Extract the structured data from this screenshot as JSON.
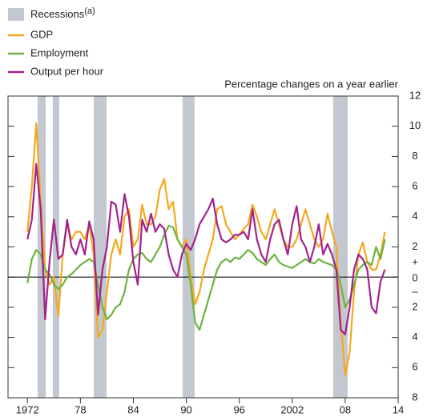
{
  "chart_data": {
    "type": "line",
    "subtitle": "Percentage changes on a year earlier",
    "recession_label": "Recessions",
    "recession_note": "(a)",
    "recession_color": "#c3c8d0",
    "recessions": [
      [
        1973.16,
        1974.07
      ],
      [
        1974.88,
        1975.6
      ],
      [
        1979.51,
        1980.96
      ],
      [
        1989.58,
        1990.94
      ],
      [
        2006.64,
        2008.28
      ]
    ],
    "sign_labels": [
      "+",
      "–"
    ],
    "xlim": [
      1969.8,
      2014
    ],
    "xticks": [
      {
        "value": 1972,
        "label": "1972"
      },
      {
        "value": 1978,
        "label": "78"
      },
      {
        "value": 1984,
        "label": "84"
      },
      {
        "value": 1990,
        "label": "90"
      },
      {
        "value": 1996,
        "label": "96"
      },
      {
        "value": 2002,
        "label": "2002"
      },
      {
        "value": 2008,
        "label": "08"
      },
      {
        "value": 2014,
        "label": "14"
      }
    ],
    "ylim": [
      -8,
      12
    ],
    "yticks": [
      {
        "value": -8,
        "label": "8"
      },
      {
        "value": -6,
        "label": "6"
      },
      {
        "value": -4,
        "label": "4"
      },
      {
        "value": -2,
        "label": "2"
      },
      0,
      2,
      4,
      6,
      8,
      10,
      12
    ],
    "x": [
      1972,
      1972.5,
      1973,
      1973.5,
      1974,
      1974.5,
      1975,
      1975.5,
      1976,
      1976.5,
      1977,
      1977.5,
      1978,
      1978.5,
      1979,
      1979.5,
      1980,
      1980.5,
      1981,
      1981.5,
      1982,
      1982.5,
      1983,
      1983.5,
      1984,
      1984.5,
      1985,
      1985.5,
      1986,
      1986.5,
      1987,
      1987.5,
      1988,
      1988.5,
      1989,
      1989.5,
      1990,
      1990.5,
      1991,
      1991.5,
      1992,
      1992.5,
      1993,
      1993.5,
      1994,
      1994.5,
      1995,
      1995.5,
      1996,
      1996.5,
      1997,
      1997.5,
      1998,
      1998.5,
      1999,
      1999.5,
      2000,
      2000.5,
      2001,
      2001.5,
      2002,
      2002.5,
      2003,
      2003.5,
      2004,
      2004.5,
      2005,
      2005.5,
      2006,
      2006.5,
      2007,
      2007.5,
      2008,
      2008.5,
      2009,
      2009.5,
      2010,
      2010.5,
      2011,
      2011.5,
      2012,
      2012.5
    ],
    "series": [
      {
        "name": "GDP",
        "color": "#f5a81e",
        "values": [
          3.0,
          6.0,
          10.2,
          5.0,
          0.5,
          -0.5,
          0.0,
          -2.6,
          1.5,
          3.5,
          2.5,
          3.0,
          3.0,
          2.5,
          3.5,
          1.5,
          -4.0,
          -3.5,
          -1.0,
          1.5,
          2.5,
          1.5,
          4.0,
          4.5,
          2.0,
          2.5,
          4.8,
          3.5,
          3.5,
          4.0,
          5.8,
          6.5,
          4.5,
          5.0,
          2.5,
          2.0,
          2.5,
          0.0,
          -1.8,
          -1.0,
          0.5,
          1.5,
          2.5,
          4.5,
          4.7,
          3.5,
          3.0,
          2.5,
          2.8,
          3.2,
          3.5,
          4.8,
          4.0,
          3.0,
          2.5,
          3.5,
          4.5,
          3.5,
          2.5,
          2.0,
          2.0,
          2.5,
          3.5,
          4.5,
          3.5,
          2.5,
          2.0,
          2.5,
          4.2,
          3.0,
          2.0,
          -3.0,
          -6.5,
          -5.0,
          -1.0,
          1.5,
          2.3,
          1.0,
          0.5,
          0.5,
          1.5,
          3.0
        ]
      },
      {
        "name": "Employment",
        "color": "#6db33f",
        "values": [
          -0.4,
          1.2,
          1.8,
          1.5,
          0.5,
          0.2,
          -0.5,
          -0.8,
          -0.5,
          0.0,
          0.2,
          0.5,
          0.8,
          1.0,
          1.2,
          1.0,
          -0.5,
          -2.0,
          -2.8,
          -2.5,
          -2.0,
          -1.8,
          -1.0,
          0.5,
          1.2,
          1.5,
          1.6,
          1.2,
          1.0,
          1.5,
          2.0,
          2.8,
          3.4,
          3.3,
          2.5,
          2.0,
          1.5,
          -0.5,
          -3.0,
          -3.5,
          -2.5,
          -1.5,
          -0.5,
          0.5,
          1.0,
          1.2,
          1.0,
          1.3,
          1.2,
          1.5,
          1.8,
          1.6,
          1.2,
          1.0,
          0.8,
          1.2,
          1.5,
          1.0,
          0.8,
          0.7,
          0.6,
          0.8,
          1.0,
          1.2,
          1.0,
          0.9,
          1.2,
          1.0,
          0.9,
          0.8,
          0.5,
          -0.5,
          -2.0,
          -1.5,
          -0.5,
          0.5,
          0.8,
          1.0,
          0.8,
          2.0,
          1.2,
          2.5
        ]
      },
      {
        "name": "Output per hour",
        "color": "#a3228d",
        "values": [
          2.5,
          3.8,
          7.5,
          4.5,
          -2.8,
          1.0,
          3.8,
          1.2,
          1.5,
          3.8,
          2.0,
          1.5,
          2.5,
          1.5,
          3.7,
          2.5,
          -2.5,
          0.5,
          2.0,
          5.0,
          4.8,
          3.0,
          5.5,
          4.0,
          1.0,
          -0.5,
          3.8,
          3.0,
          4.2,
          3.0,
          3.5,
          3.2,
          1.5,
          0.5,
          0.0,
          1.5,
          2.2,
          1.8,
          2.5,
          3.5,
          4.0,
          4.5,
          5.2,
          3.5,
          2.5,
          2.3,
          2.5,
          2.8,
          2.8,
          3.0,
          2.5,
          4.5,
          2.5,
          1.5,
          1.0,
          2.5,
          3.5,
          3.8,
          2.5,
          1.5,
          3.5,
          4.7,
          2.5,
          2.0,
          1.0,
          2.0,
          3.5,
          1.5,
          2.2,
          1.5,
          0.5,
          -3.5,
          -3.8,
          -2.0,
          0.5,
          1.5,
          1.2,
          0.5,
          -2.0,
          -2.4,
          -0.3,
          0.5
        ]
      }
    ]
  }
}
